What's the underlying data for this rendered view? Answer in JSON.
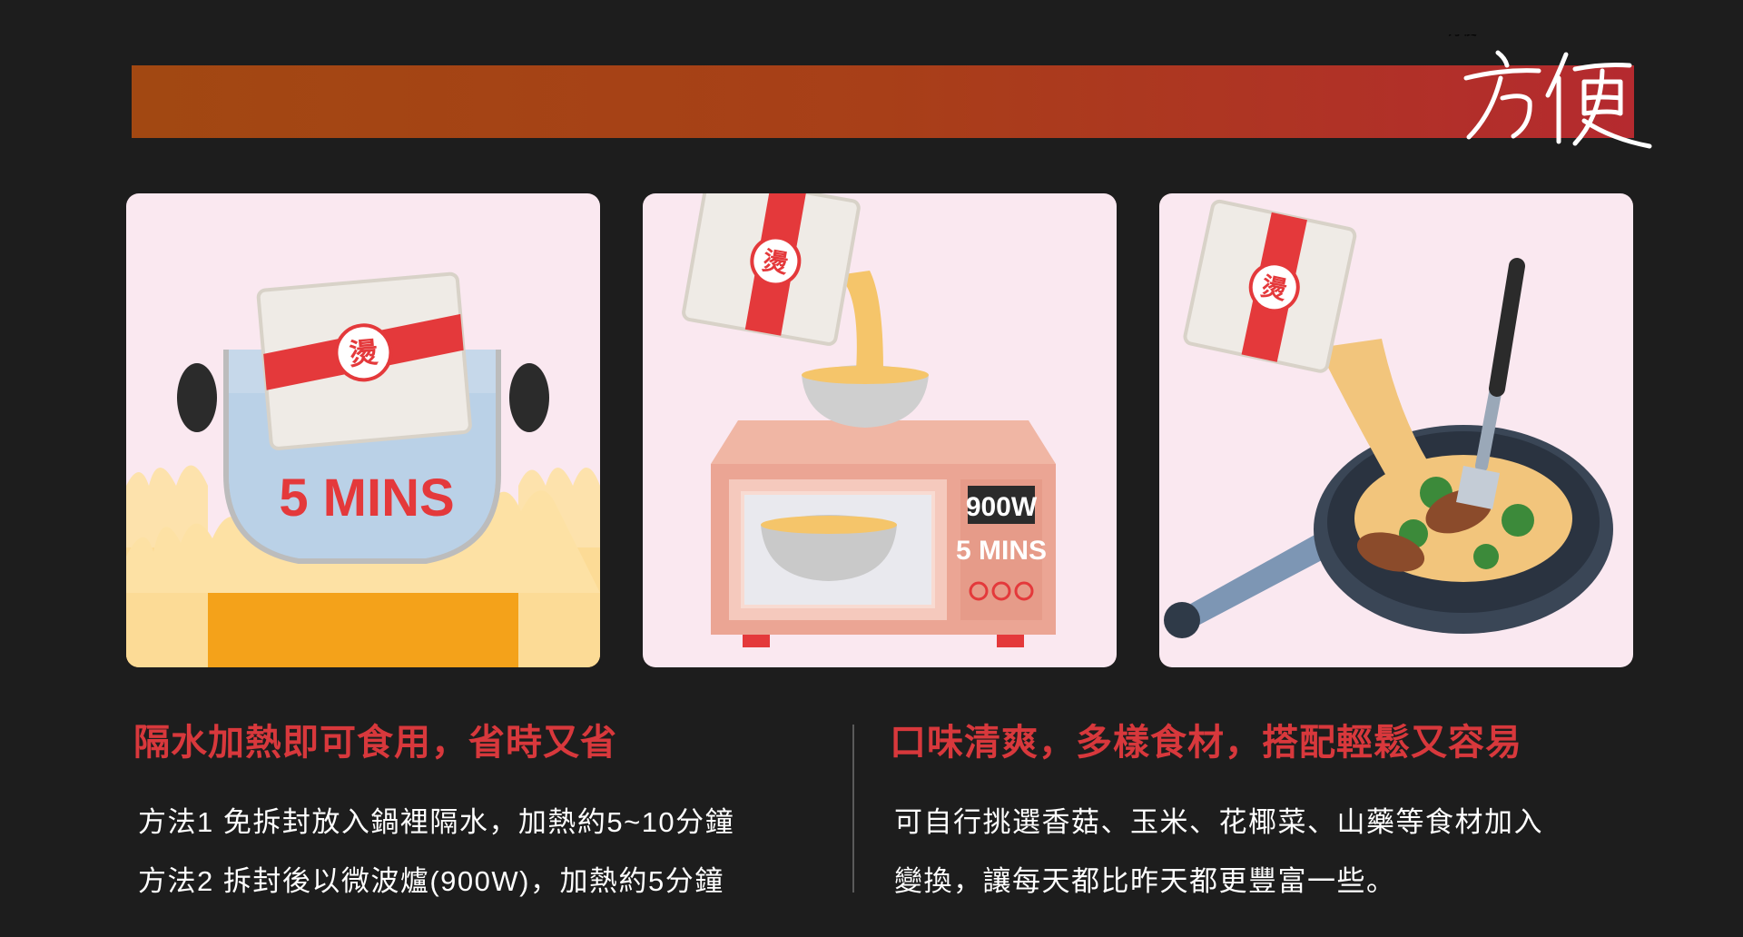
{
  "banner": {
    "brand_word": "方便"
  },
  "panels": [
    {
      "badge_glyph": "燙",
      "time_label": "5 MINS"
    },
    {
      "badge_glyph": "燙",
      "power_label": "900W",
      "time_label": "5 MINS"
    },
    {
      "badge_glyph": "燙"
    }
  ],
  "left_section": {
    "heading": "隔水加熱即可食用，省時又省",
    "lines": [
      "方法1 免拆封放入鍋裡隔水，加熱約5~10分鐘",
      "方法2 拆封後以微波爐(900W)，加熱約5分鐘"
    ]
  },
  "right_section": {
    "heading": "口味清爽，多樣食材，搭配輕鬆又容易",
    "lines": [
      "可自行挑選香菇、玉米、花椰菜、山藥等食材加入",
      "變換，讓每天都比昨天都更豐富一些。"
    ]
  },
  "colors": {
    "background": "#1d1d1d",
    "banner_start": "#a24812",
    "banner_end": "#b52a2f",
    "accent_red": "#d8383c",
    "panel_bg": "#fae8f0"
  }
}
